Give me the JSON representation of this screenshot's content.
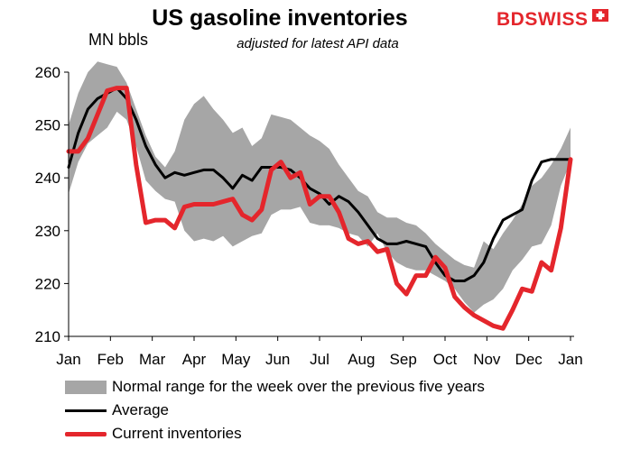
{
  "header": {
    "title": "US gasoline inventories",
    "subtitle": "adjusted for latest API data",
    "units": "MN bbls",
    "logo_left": "BD",
    "logo_right": "SWISS"
  },
  "colors": {
    "range": "#a6a6a6",
    "average": "#000000",
    "current": "#e4262c"
  },
  "chart_data": {
    "type": "line",
    "title": "US gasoline inventories",
    "subtitle": "adjusted for latest API data",
    "ylabel": "MN bbls",
    "xlabel": "",
    "ylim": [
      210,
      260
    ],
    "yticks": [
      210,
      220,
      230,
      240,
      250,
      260
    ],
    "xtick_labels": [
      "Jan",
      "Feb",
      "Mar",
      "Apr",
      "May",
      "Jun",
      "Jul",
      "Aug",
      "Sep",
      "Oct",
      "Nov",
      "Dec",
      "Jan"
    ],
    "grid": false,
    "legend_position": "bottom",
    "x_weeks": [
      0,
      1,
      2,
      3,
      4,
      5,
      6,
      7,
      8,
      9,
      10,
      11,
      12,
      13,
      14,
      15,
      16,
      17,
      18,
      19,
      20,
      21,
      22,
      23,
      24,
      25,
      26,
      27,
      28,
      29,
      30,
      31,
      32,
      33,
      34,
      35,
      36,
      37,
      38,
      39,
      40,
      41,
      42,
      43,
      44,
      45,
      46,
      47,
      48,
      49,
      50,
      51,
      52
    ],
    "series": [
      {
        "name": "Normal range for the week over the previous five years",
        "kind": "band",
        "upper": [
          250,
          256,
          260,
          262,
          261.5,
          261,
          258,
          253,
          248,
          244,
          242,
          245,
          251,
          254,
          255.5,
          253,
          251,
          248.5,
          249.5,
          246,
          247.5,
          252,
          251.5,
          251,
          249.5,
          248,
          247,
          245.5,
          242.5,
          240,
          237.5,
          236.5,
          233.5,
          232.5,
          232.5,
          231.5,
          231,
          229.5,
          227.5,
          226,
          224.5,
          223.5,
          223,
          228,
          226.5,
          229.5,
          232,
          235,
          238.5,
          240,
          242.5,
          245.5,
          249.5
        ],
        "lower": [
          237,
          243,
          246.5,
          248,
          249.5,
          252.5,
          251,
          246,
          239.5,
          237.5,
          236,
          235.5,
          230,
          228,
          228.5,
          228,
          229,
          227,
          228,
          229,
          229.5,
          233,
          234,
          234,
          234.5,
          231.5,
          231,
          231,
          230.5,
          229.5,
          229,
          227,
          229.5,
          226,
          224,
          223,
          222.5,
          222.5,
          221.5,
          220.5,
          219,
          216.5,
          214.5,
          216,
          217,
          219,
          222.5,
          224.5,
          227,
          227.5,
          231,
          238.5,
          243
        ]
      },
      {
        "name": "Average",
        "kind": "line",
        "values": [
          242,
          248.5,
          253,
          255,
          256,
          257,
          255,
          251,
          246,
          242.5,
          240,
          241,
          240.5,
          241,
          241.5,
          241.5,
          240,
          238,
          240.5,
          239.5,
          242,
          242,
          242,
          241.5,
          240,
          238,
          237,
          235,
          236.5,
          235.5,
          233.5,
          231,
          228.5,
          227.5,
          227.5,
          228,
          227.5,
          227,
          224,
          221.5,
          220.5,
          220.5,
          221.5,
          224,
          228.5,
          232,
          233,
          234,
          239.5,
          243,
          243.5,
          243.5,
          243.5
        ]
      },
      {
        "name": "Current inventories",
        "kind": "line",
        "values": [
          245,
          245,
          247.5,
          252,
          256.5,
          257,
          257,
          242.5,
          231.5,
          232,
          232,
          230.5,
          234.5,
          235,
          235,
          235,
          235.5,
          236,
          233,
          232,
          234,
          241.5,
          243,
          240,
          241,
          235,
          236.5,
          236.5,
          233.5,
          228.5,
          227.5,
          228,
          226,
          226.5,
          220,
          218,
          221.5,
          221.5,
          225,
          223,
          217.5,
          215.5,
          214,
          213,
          212,
          211.5,
          215,
          219,
          218.5,
          224,
          222.5,
          230.5,
          243.5
        ]
      }
    ]
  }
}
